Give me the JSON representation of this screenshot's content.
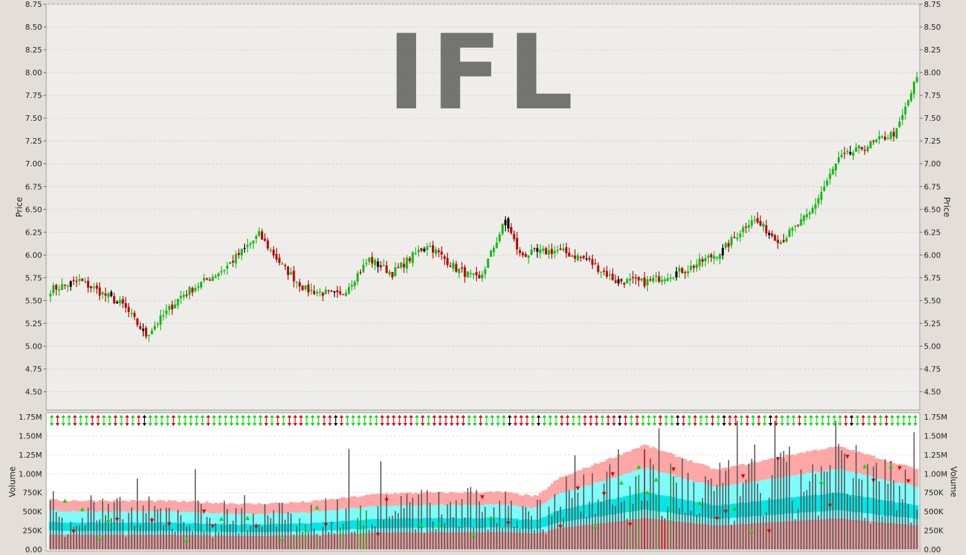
{
  "chart_data": [
    {
      "type": "candlestick",
      "title": "IFL",
      "ylabel": "Price",
      "ylim": [
        4.3,
        8.75
      ],
      "yticks": [
        "8.75",
        "8.50",
        "8.25",
        "8.00",
        "7.75",
        "7.50",
        "7.25",
        "7.00",
        "6.75",
        "6.50",
        "6.25",
        "6.00",
        "5.75",
        "5.50",
        "5.25",
        "5.00",
        "4.75",
        "4.50"
      ],
      "grid": true,
      "colors": {
        "up": "#11bb11",
        "down": "#bb0000",
        "neutral": "#000000"
      },
      "anchors": [
        {
          "i": 0,
          "close": 5.62
        },
        {
          "i": 10,
          "close": 5.72
        },
        {
          "i": 25,
          "close": 5.45
        },
        {
          "i": 33,
          "close": 5.12
        },
        {
          "i": 45,
          "close": 5.55
        },
        {
          "i": 60,
          "close": 5.85
        },
        {
          "i": 72,
          "close": 6.22
        },
        {
          "i": 80,
          "close": 5.88
        },
        {
          "i": 88,
          "close": 5.62
        },
        {
          "i": 100,
          "close": 5.55
        },
        {
          "i": 110,
          "close": 5.95
        },
        {
          "i": 118,
          "close": 5.8
        },
        {
          "i": 130,
          "close": 6.12
        },
        {
          "i": 140,
          "close": 5.85
        },
        {
          "i": 148,
          "close": 5.72
        },
        {
          "i": 157,
          "close": 6.38
        },
        {
          "i": 162,
          "close": 6.0
        },
        {
          "i": 175,
          "close": 6.05
        },
        {
          "i": 185,
          "close": 5.95
        },
        {
          "i": 195,
          "close": 5.72
        },
        {
          "i": 205,
          "close": 5.7
        },
        {
          "i": 220,
          "close": 5.85
        },
        {
          "i": 232,
          "close": 6.05
        },
        {
          "i": 242,
          "close": 6.4
        },
        {
          "i": 252,
          "close": 6.15
        },
        {
          "i": 262,
          "close": 6.45
        },
        {
          "i": 272,
          "close": 7.05
        },
        {
          "i": 282,
          "close": 7.2
        },
        {
          "i": 292,
          "close": 7.35
        },
        {
          "i": 299,
          "close": 7.95
        }
      ]
    },
    {
      "type": "bar",
      "ylabel": "Volume",
      "ylim": [
        0,
        1750000
      ],
      "yticks": [
        "1.75M",
        "1.50M",
        "1.25M",
        "1.00M",
        "750K",
        "500K",
        "250K",
        "0.00"
      ],
      "grid": true,
      "bands": {
        "outer": "#ffa6a6",
        "mid": "#7ffcfc",
        "inner": "#00e6e6",
        "base": "#e89a9a"
      },
      "bar_color": "#555555",
      "marker_colors": {
        "up": "#00dd00",
        "down": "#dd0000",
        "neutral": "#000000"
      }
    }
  ]
}
